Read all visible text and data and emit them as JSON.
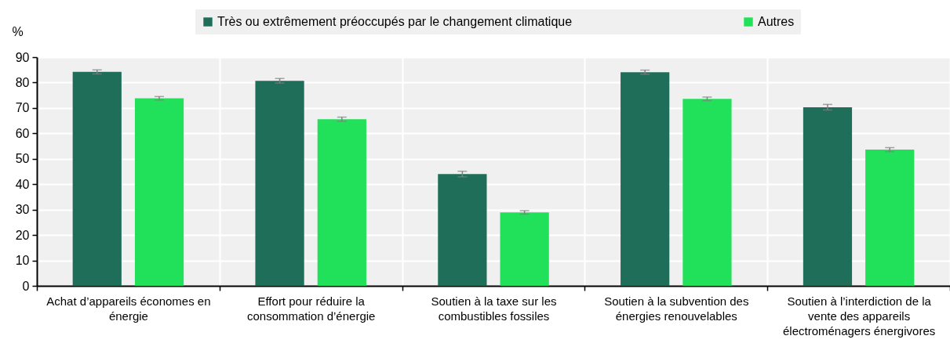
{
  "chart_data": {
    "type": "bar",
    "ylabel": "%",
    "categories": [
      "Achat d’appareils économes en énergie",
      "Effort pour réduire la consommation d’énergie",
      "Soutien à la taxe sur les combustibles fossiles",
      "Soutien à la subvention des énergies renouvelables",
      "Soutien à l’interdiction de la vente des appareils électroménagers énergivores"
    ],
    "series": [
      {
        "name": "Très ou extrêmement préoccupés par le changement climatique",
        "color": "#1f6e5a",
        "values": [
          84.2,
          80.7,
          44.0,
          84.1,
          70.3
        ],
        "errors": [
          0.8,
          0.9,
          1.1,
          0.8,
          1.1
        ]
      },
      {
        "name": "Autres",
        "color": "#21e05a",
        "values": [
          73.8,
          65.6,
          28.9,
          73.6,
          53.6
        ],
        "errors": [
          0.7,
          0.8,
          0.7,
          0.7,
          0.8
        ]
      }
    ],
    "ylim": [
      0,
      90
    ],
    "yticks": [
      0,
      10,
      20,
      30,
      40,
      50,
      60,
      70,
      80,
      90
    ],
    "grid": true,
    "legend": "top"
  }
}
